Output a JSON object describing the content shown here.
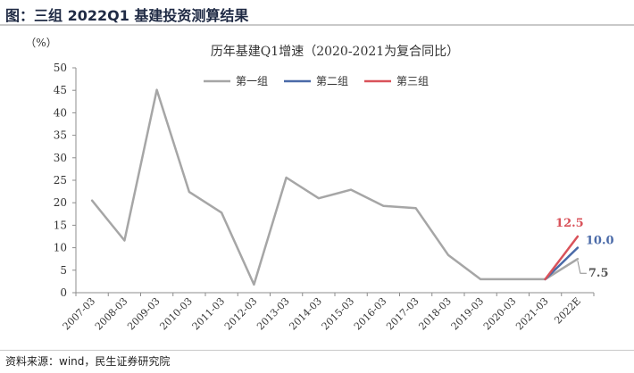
{
  "figure_title": "图：三组 2022Q1 基建投资测算结果",
  "source_note": "资料来源：wind，民生证券研究院",
  "chart_data": {
    "type": "line",
    "title": "历年基建Q1增速（2020-2021为复合同比）",
    "ylabel": "（%）",
    "xlabel": "",
    "ylim": [
      0,
      50
    ],
    "yticks": [
      0,
      5,
      10,
      15,
      20,
      25,
      30,
      35,
      40,
      45,
      50
    ],
    "categories": [
      "2007-03",
      "2008-03",
      "2009-03",
      "2010-03",
      "2011-03",
      "2012-03",
      "2013-03",
      "2014-03",
      "2015-03",
      "2016-03",
      "2017-03",
      "2018-03",
      "2019-03",
      "2020-03",
      "2021-03",
      "2022E"
    ],
    "grid": false,
    "legend_position": "top",
    "series": [
      {
        "name": "第一组",
        "color": "#a6a6a6",
        "values": [
          20.5,
          11.6,
          45.1,
          22.4,
          17.8,
          1.8,
          25.6,
          21.0,
          22.9,
          19.3,
          18.8,
          8.4,
          3.0,
          3.0,
          3.0,
          7.5
        ],
        "end_label": "7.5"
      },
      {
        "name": "第二组",
        "color": "#4a6aa8",
        "values": [
          null,
          null,
          null,
          null,
          null,
          null,
          null,
          null,
          null,
          null,
          null,
          null,
          null,
          null,
          3.0,
          10.0
        ],
        "end_label": "10.0"
      },
      {
        "name": "第三组",
        "color": "#d9525a",
        "values": [
          null,
          null,
          null,
          null,
          null,
          null,
          null,
          null,
          null,
          null,
          null,
          null,
          null,
          null,
          3.0,
          12.5
        ],
        "end_label": "12.5"
      }
    ]
  }
}
